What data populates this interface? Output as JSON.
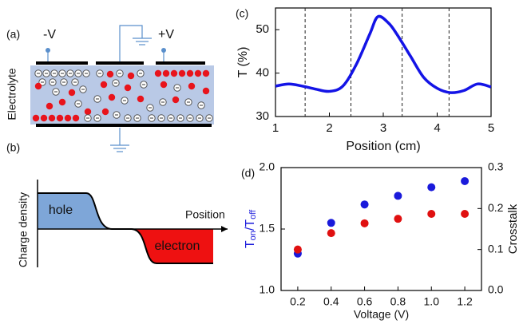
{
  "panel_a": {
    "label": "(a)",
    "electrode_left": "-V",
    "electrode_right": "+V",
    "side_label": "Electrolyte"
  },
  "panel_b": {
    "label": "(b)",
    "y_label": "Charge density",
    "x_label": "Position",
    "hole": "hole",
    "electron": "electron"
  },
  "chart_data": [
    {
      "type": "line",
      "label": "(c)",
      "xlabel": "Position (cm)",
      "ylabel": "T (%)",
      "color": "#1414e6",
      "x": [
        1,
        1.25,
        1.5,
        1.75,
        2,
        2.25,
        2.5,
        2.75,
        2.9,
        3.1,
        3.25,
        3.5,
        3.75,
        4,
        4.25,
        4.5,
        4.75,
        5
      ],
      "values": [
        37,
        37.5,
        37,
        36.3,
        35.8,
        37,
        42,
        49,
        53,
        51.5,
        49,
        44,
        39,
        36.5,
        35.5,
        36,
        37.5,
        36.8
      ],
      "xlim": [
        1,
        5
      ],
      "ylim": [
        30,
        55
      ],
      "xticks": [
        1,
        2,
        3,
        4,
        5
      ],
      "yticks": [
        30,
        40,
        50
      ],
      "reference_lines_x": [
        1.55,
        2.4,
        3.35,
        4.22
      ]
    },
    {
      "type": "scatter",
      "label": "(d)",
      "xlabel": "Voltage (V)",
      "ylabel": {
        "main": "T",
        "sub1": "on",
        "mid": "/T",
        "sub2": "off"
      },
      "y2label": "Crosstalk",
      "x": [
        0.2,
        0.4,
        0.6,
        0.8,
        1.0,
        1.2
      ],
      "series": [
        {
          "color": "#1a1adb",
          "values": [
            1.3,
            1.55,
            1.7,
            1.77,
            1.84,
            1.89
          ]
        },
        {
          "color": "#e01010",
          "axis": "y2",
          "values": [
            0.1,
            0.14,
            0.164,
            0.175,
            0.187,
            0.187
          ]
        }
      ],
      "xlim": [
        0.1,
        1.3
      ],
      "ylim": [
        1,
        2
      ],
      "y2lim": [
        0,
        0.3
      ],
      "xticks": [
        0.2,
        0.4,
        0.6,
        0.8,
        {
          "value": 1,
          "label": "1.0"
        },
        1.2
      ],
      "yticks": [
        {
          "value": 1,
          "label": "1.0"
        },
        1.5,
        {
          "value": 2,
          "label": "2.0"
        }
      ],
      "y2ticks": [
        {
          "value": 0,
          "label": "0.0"
        },
        0.1,
        0.2,
        0.3
      ]
    }
  ]
}
